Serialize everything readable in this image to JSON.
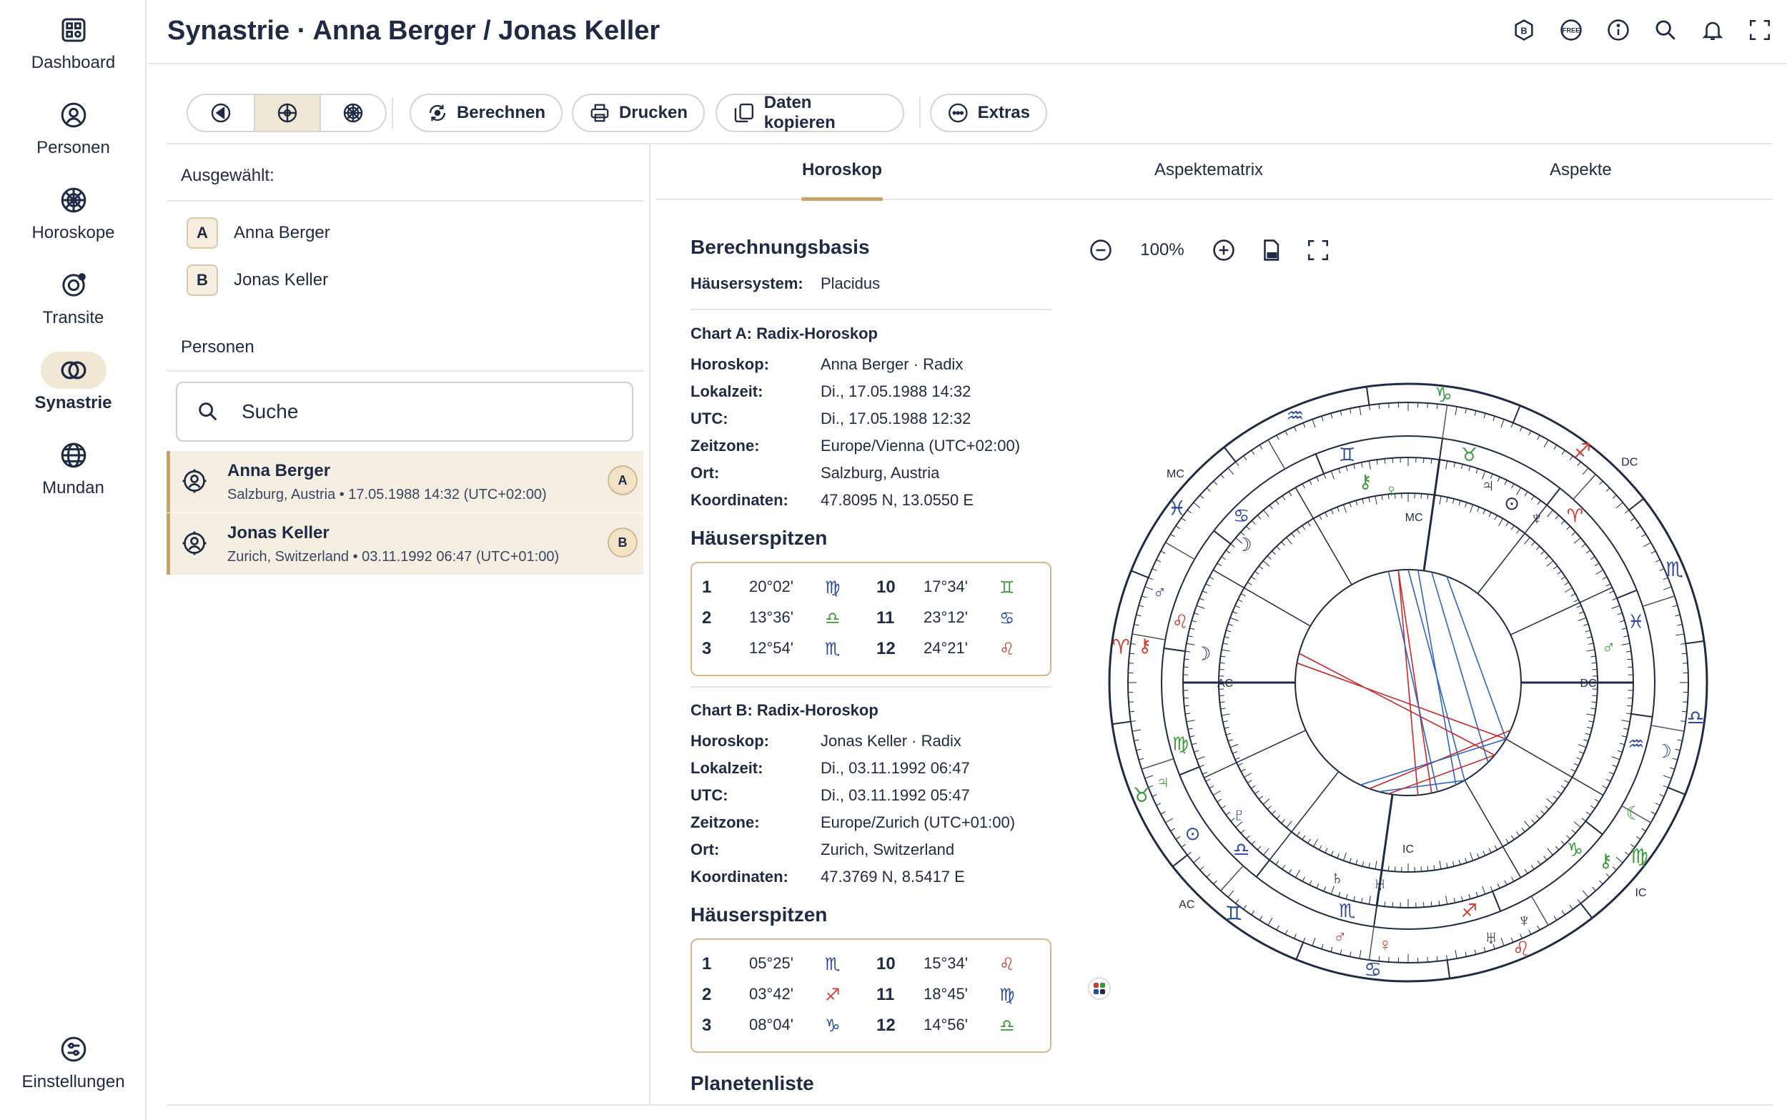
{
  "app": {
    "title": "Synastrie · Anna Berger / Jonas Keller"
  },
  "sidebar": {
    "items": [
      {
        "label": "Dashboard",
        "icon": "dashboard-icon"
      },
      {
        "label": "Personen",
        "icon": "person-icon"
      },
      {
        "label": "Horoskope",
        "icon": "horoscope-wheel-icon"
      },
      {
        "label": "Transite",
        "icon": "transit-icon"
      },
      {
        "label": "Synastrie",
        "icon": "synastry-icon",
        "active": true
      },
      {
        "label": "Mundan",
        "icon": "globe-icon"
      }
    ],
    "settings_label": "Einstellungen"
  },
  "header_icons": [
    "badge-b-icon",
    "free-badge-icon",
    "info-icon",
    "search-icon",
    "bell-icon",
    "fullscreen-icon"
  ],
  "toolbar": {
    "segments": [
      "chart-left-icon",
      "chart-cross-icon",
      "chart-wheel-icon"
    ],
    "calc_label": "Berechnen",
    "print_label": "Drucken",
    "copy_label": "Daten kopieren",
    "extras_label": "Extras"
  },
  "left": {
    "selected_label": "Ausgewählt:",
    "selected": [
      {
        "badge": "A",
        "name": "Anna Berger"
      },
      {
        "badge": "B",
        "name": "Jonas Keller"
      }
    ],
    "persons_label": "Personen",
    "search_placeholder": "Suche",
    "persons": [
      {
        "name": "Anna Berger",
        "sub": "Salzburg, Austria • 17.05.1988 14:32 (UTC+02:00)",
        "badge": "A"
      },
      {
        "name": "Jonas Keller",
        "sub": "Zurich, Switzerland • 03.11.1992 06:47 (UTC+01:00)",
        "badge": "B"
      }
    ]
  },
  "tabs": [
    {
      "label": "Horoskop",
      "active": true
    },
    {
      "label": "Aspektematrix"
    },
    {
      "label": "Aspekte"
    }
  ],
  "info": {
    "basis_title": "Berechnungsbasis",
    "house_system_label": "Häusersystem:",
    "house_system": "Placidus",
    "chart_a": {
      "heading": "Chart A: Radix-Horoskop",
      "rows": [
        {
          "k": "Horoskop:",
          "v": "Anna Berger · Radix"
        },
        {
          "k": "Lokalzeit:",
          "v": "Di., 17.05.1988 14:32"
        },
        {
          "k": "UTC:",
          "v": "Di., 17.05.1988 12:32"
        },
        {
          "k": "Zeitzone:",
          "v": "Europe/Vienna (UTC+02:00)"
        },
        {
          "k": "Ort:",
          "v": "Salzburg, Austria"
        },
        {
          "k": "Koordinaten:",
          "v": "47.8095 N, 13.0550 E"
        }
      ],
      "cusps_title": "Häuserspitzen",
      "cusps": [
        {
          "n": "1",
          "deg": "20°02'",
          "sign": "♍",
          "color": "#2a4aa0"
        },
        {
          "n": "10",
          "deg": "17°34'",
          "sign": "♊",
          "color": "#3a9a3a"
        },
        {
          "n": "2",
          "deg": "13°36'",
          "sign": "♎",
          "color": "#3a9a3a"
        },
        {
          "n": "11",
          "deg": "23°12'",
          "sign": "♋",
          "color": "#2a4aa0"
        },
        {
          "n": "3",
          "deg": "12°54'",
          "sign": "♏",
          "color": "#2a4aa0"
        },
        {
          "n": "12",
          "deg": "24°21'",
          "sign": "♌",
          "color": "#d23c32"
        }
      ]
    },
    "chart_b": {
      "heading": "Chart B: Radix-Horoskop",
      "rows": [
        {
          "k": "Horoskop:",
          "v": "Jonas Keller · Radix"
        },
        {
          "k": "Lokalzeit:",
          "v": "Di., 03.11.1992 06:47"
        },
        {
          "k": "UTC:",
          "v": "Di., 03.11.1992 05:47"
        },
        {
          "k": "Zeitzone:",
          "v": "Europe/Zurich (UTC+01:00)"
        },
        {
          "k": "Ort:",
          "v": "Zurich, Switzerland"
        },
        {
          "k": "Koordinaten:",
          "v": "47.3769 N, 8.5417 E"
        }
      ],
      "cusps_title": "Häuserspitzen",
      "cusps": [
        {
          "n": "1",
          "deg": "05°25'",
          "sign": "♏",
          "color": "#2a4aa0"
        },
        {
          "n": "10",
          "deg": "15°34'",
          "sign": "♌",
          "color": "#d23c32"
        },
        {
          "n": "2",
          "deg": "03°42'",
          "sign": "♐",
          "color": "#d23c32"
        },
        {
          "n": "11",
          "deg": "18°45'",
          "sign": "♍",
          "color": "#2a4aa0"
        },
        {
          "n": "3",
          "deg": "08°04'",
          "sign": "♑",
          "color": "#2a4aa0"
        },
        {
          "n": "12",
          "deg": "14°56'",
          "sign": "♎",
          "color": "#3a9a3a"
        }
      ]
    },
    "planet_list_title": "Planetenliste"
  },
  "zoom": {
    "value": "100%"
  },
  "wheel": {
    "angle_labels": {
      "ac_inner": "AC",
      "dc_inner": "DC",
      "mc_inner": "MC",
      "ic_inner": "IC",
      "ac_outer": "AC",
      "dc_outer": "DC",
      "mc_outer": "MC",
      "ic_outer": "IC"
    },
    "inner_signs": [
      "♍",
      "♎",
      "♏",
      "♐",
      "♑",
      "♒",
      "♓",
      "♈",
      "♉",
      "♊",
      "♋",
      "♌"
    ],
    "outer_signs": [
      "♏",
      "♐",
      "♑",
      "♒",
      "♓",
      "♈",
      "♉",
      "♊",
      "♋",
      "♌",
      "♍",
      "♎"
    ],
    "colors": {
      "fire": "#d23c32",
      "earth": "#3a9a3a",
      "air": "#2a4aa0",
      "water": "#2a4aa0",
      "aspect_red": "#c82828",
      "aspect_blue": "#2d62c8"
    }
  }
}
